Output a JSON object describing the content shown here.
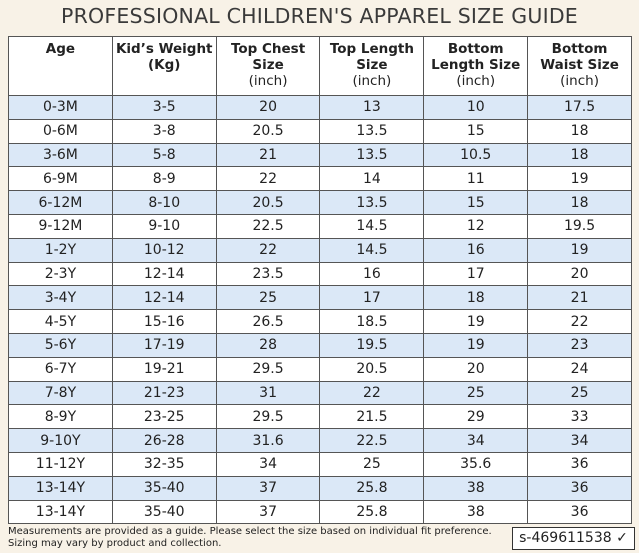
{
  "header": {
    "title": "PROFESSIONAL CHILDREN'S APPAREL SIZE GUIDE"
  },
  "table": {
    "columns": [
      {
        "title": "Age",
        "unit": null
      },
      {
        "title": "Kid’s Weight (Kg)",
        "unit": null
      },
      {
        "title": "Top Chest Size",
        "unit": "(inch)"
      },
      {
        "title": "Top Length Size",
        "unit": "(inch)"
      },
      {
        "title": "Bottom Length Size",
        "unit": "(inch)"
      },
      {
        "title": "Bottom Waist Size",
        "unit": "(inch)"
      }
    ],
    "rows": [
      [
        "0-3M",
        "3-5",
        20,
        13,
        10,
        17.5
      ],
      [
        "0-6M",
        "3-8",
        20.5,
        13.5,
        15,
        18
      ],
      [
        "3-6M",
        "5-8",
        21,
        13.5,
        10.5,
        18
      ],
      [
        "6-9M",
        "8-9",
        22,
        14,
        11,
        19
      ],
      [
        "6-12M",
        "8-10",
        20.5,
        13.5,
        15,
        18
      ],
      [
        "9-12M",
        "9-10",
        22.5,
        14.5,
        12,
        19.5
      ],
      [
        "1-2Y",
        "10-12",
        22,
        14.5,
        16,
        19
      ],
      [
        "2-3Y",
        "12-14",
        23.5,
        16,
        17,
        20
      ],
      [
        "3-4Y",
        "12-14",
        25,
        17,
        18,
        21
      ],
      [
        "4-5Y",
        "15-16",
        26.5,
        18.5,
        19,
        22
      ],
      [
        "5-6Y",
        "17-19",
        28,
        19.5,
        19,
        23
      ],
      [
        "6-7Y",
        "19-21",
        29.5,
        20.5,
        20,
        24
      ],
      [
        "7-8Y",
        "21-23",
        31,
        22,
        25,
        25
      ],
      [
        "8-9Y",
        "23-25",
        29.5,
        21.5,
        29,
        33
      ],
      [
        "9-10Y",
        "26-28",
        31.6,
        22.5,
        34,
        34
      ],
      [
        "11-12Y",
        "32-35",
        34,
        25,
        35.6,
        36
      ],
      [
        "13-14Y",
        "35-40",
        37,
        25.8,
        38,
        36
      ],
      [
        "13-14Y",
        "35-40",
        37,
        25.8,
        38,
        36
      ]
    ]
  },
  "footer": {
    "note": "Measurements are provided as a guide. Please select the size based on individual fit preference. Sizing may vary by product and collection.",
    "code": "s-469611538 ✓"
  }
}
